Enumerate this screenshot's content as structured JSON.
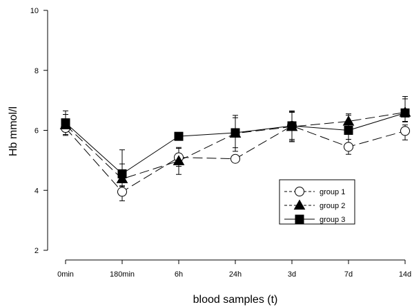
{
  "chart_data": {
    "type": "line",
    "xlabel": "blood samples (t)",
    "ylabel": "Hb mmol/l",
    "categories": [
      "0min",
      "180min",
      "6h",
      "24h",
      "3d",
      "7d",
      "14d"
    ],
    "ylim": [
      2,
      10
    ],
    "yticks": [
      2,
      4,
      6,
      8,
      10
    ],
    "grid": false,
    "legend": "lower-right",
    "series": [
      {
        "name": "group 1",
        "marker": "circle-open",
        "line": "dash-long",
        "values": [
          6.08,
          3.95,
          5.1,
          5.05,
          6.15,
          5.45,
          5.98
        ],
        "err_high": [
          0.22,
          0.3,
          0.3,
          0,
          0.45,
          0.25,
          0.2
        ],
        "err_low": [
          0.22,
          0.3,
          0.3,
          0,
          0.45,
          0.25,
          0.3
        ]
      },
      {
        "name": "group 2",
        "marker": "triangle-filled",
        "line": "dash-long",
        "values": [
          6.18,
          4.38,
          4.98,
          5.9,
          6.12,
          6.3,
          6.6
        ],
        "err_high": [
          0.35,
          0.5,
          0.45,
          0.6,
          0.5,
          0.25,
          0.45
        ],
        "err_low": [
          0.35,
          0.25,
          0.45,
          0.6,
          0.5,
          0.3,
          0.3
        ]
      },
      {
        "name": "group 3",
        "marker": "square-filled",
        "line": "solid",
        "values": [
          6.25,
          4.55,
          5.8,
          5.92,
          6.15,
          6.0,
          6.58
        ],
        "err_high": [
          0.4,
          0.8,
          0,
          0.5,
          0.5,
          0.5,
          0.55
        ],
        "err_low": [
          0.3,
          0.4,
          0,
          0.5,
          0.5,
          0.3,
          0.3
        ]
      }
    ]
  }
}
